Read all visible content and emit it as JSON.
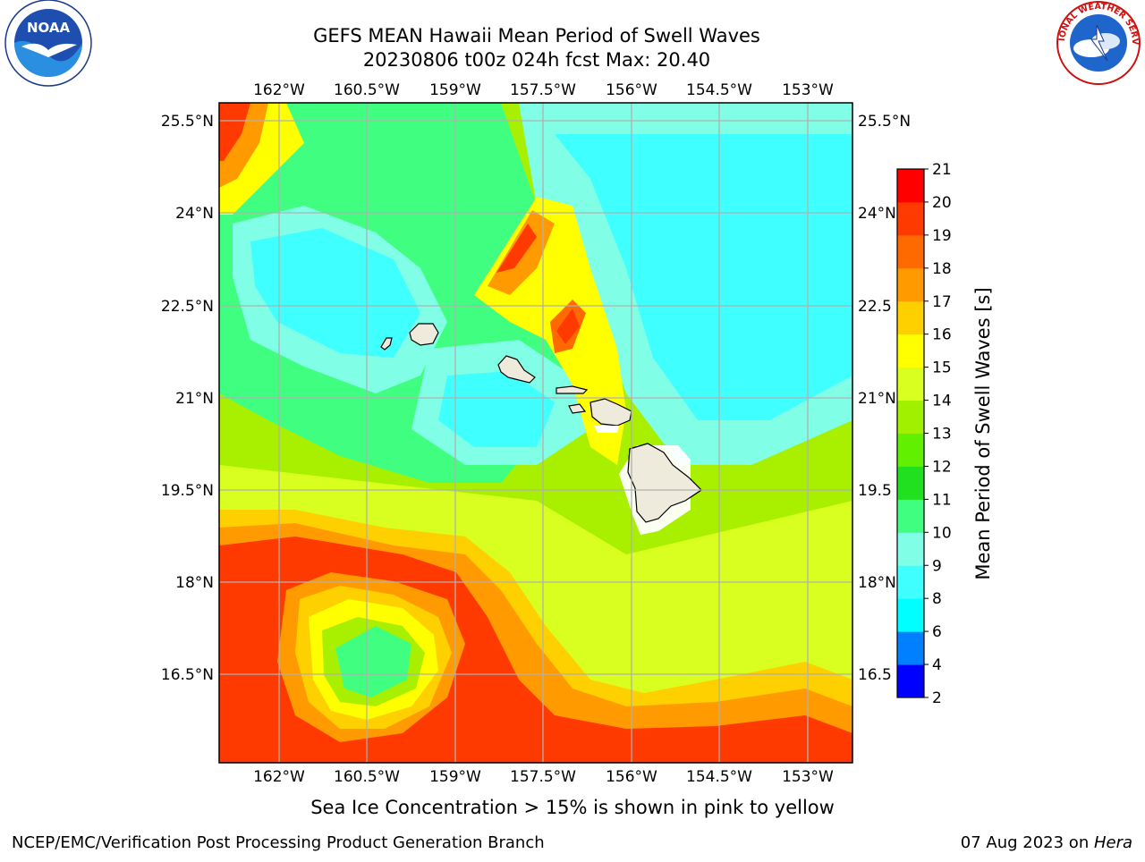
{
  "title": {
    "line1": "GEFS MEAN Hawaii Mean Period of Swell Waves",
    "line2": "20230806 t00z 024h fcst   Max: 20.40"
  },
  "caption": "Sea Ice Concentration > 15% is shown in pink to yellow",
  "footer": {
    "left": "NCEP/EMC/Verification Post Processing Product Generation Branch",
    "right_prefix": "07 Aug 2023 on ",
    "right_host": "Hera"
  },
  "logos": {
    "noaa": "NOAA",
    "nws": "NATIONAL WEATHER SERVICE"
  },
  "map": {
    "lon_ticks": [
      "162°W",
      "160.5°W",
      "159°W",
      "157.5°W",
      "156°W",
      "154.5°W",
      "153°W"
    ],
    "lat_ticks_left": [
      "25.5°N",
      "24°N",
      "22.5°N",
      "21°N",
      "19.5°N",
      "18°N",
      "16.5°N"
    ],
    "lat_ticks_right": [
      "25.5°N",
      "24°N",
      "22.5",
      "21°N",
      "19.5",
      "18°N",
      "16.5"
    ],
    "land_color": "#eeebdc",
    "grid_color": "#b0b0b0"
  },
  "colorbar": {
    "label": "Mean Period of Swell Waves [s]",
    "ticks": [
      "2",
      "4",
      "6",
      "8",
      "9",
      "10",
      "11",
      "12",
      "13",
      "14",
      "15",
      "16",
      "17",
      "18",
      "19",
      "20",
      "21"
    ],
    "colors": [
      "#0000ff",
      "#0080ff",
      "#00ffff",
      "#40ffff",
      "#80ffe6",
      "#40ff80",
      "#20e020",
      "#60f000",
      "#a0f000",
      "#d8ff20",
      "#ffff00",
      "#ffd000",
      "#ff9a00",
      "#ff6a00",
      "#ff3a00",
      "#ff0000"
    ]
  }
}
